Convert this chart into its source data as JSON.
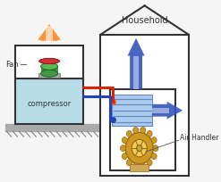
{
  "bg_color": "#f5f5f5",
  "title": "Household",
  "fan_label": "Fan",
  "compressor_label": "compressor",
  "air_handler_label": "Air Handler",
  "ground_color": "#aaaaaa",
  "compressor_fill": "#b8dde8",
  "wall_color": "#333333",
  "red_pipe": "#dd2200",
  "blue_pipe": "#2244bb",
  "orange_arrow": "#ff8822",
  "blue_arrow_up": "#3355bb",
  "blue_arrow_right": "#3355bb",
  "coil_fill": "#aaccee",
  "coil_line": "#6688bb",
  "motor_outer": "#cc9922",
  "motor_inner": "#eecc55",
  "fan_green": "#449944",
  "fan_red": "#cc3333"
}
